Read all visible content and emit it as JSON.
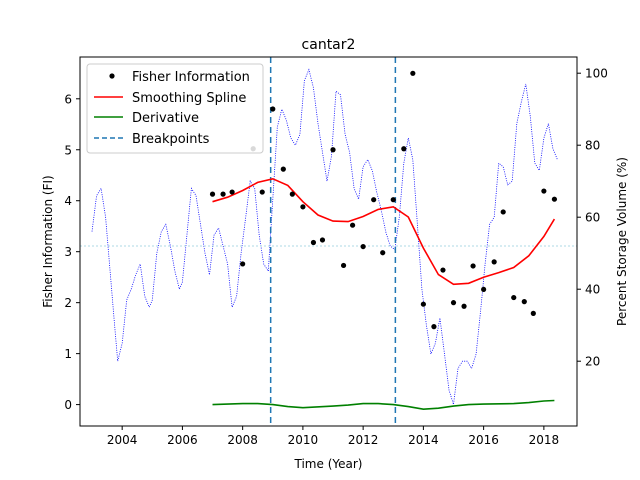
{
  "chart_data": {
    "type": "line",
    "title": "cantar2",
    "xlabel": "Time (Year)",
    "ylabel": "Fisher Information (FI)",
    "y2label": "Percent Storage Volume (%)",
    "xlim": [
      2002.6,
      2019.1
    ],
    "ylim": [
      -0.42,
      6.82
    ],
    "y2lim": [
      2.0,
      104.5
    ],
    "xticks": [
      2004,
      2006,
      2008,
      2010,
      2012,
      2014,
      2016,
      2018
    ],
    "yticks": [
      0,
      1,
      2,
      3,
      4,
      5,
      6
    ],
    "y2ticks": [
      20,
      40,
      60,
      80,
      100
    ],
    "legend": {
      "placement": "upper-left",
      "entries": [
        "Fisher Information",
        "Smoothing Spline",
        "Derivative",
        "Breakpoints"
      ]
    },
    "colors": {
      "fisher": "#000000",
      "spline": "#ff0000",
      "derivative": "#008000",
      "breakpoints": "#1f77b4",
      "storage": "#0000ff",
      "mean_storage": "#add8e6"
    },
    "fisher_points": {
      "x": [
        2007.0,
        2007.35,
        2007.65,
        2008.0,
        2008.35,
        2008.65,
        2009.0,
        2009.35,
        2009.65,
        2010.0,
        2010.35,
        2010.65,
        2011.0,
        2011.35,
        2011.65,
        2012.0,
        2012.35,
        2012.65,
        2013.0,
        2013.35,
        2013.65,
        2014.0,
        2014.35,
        2014.65,
        2015.0,
        2015.35,
        2015.65,
        2016.0,
        2016.35,
        2016.65,
        2017.0,
        2017.35,
        2017.65,
        2018.0,
        2018.35
      ],
      "y": [
        4.13,
        4.13,
        4.17,
        2.76,
        5.02,
        4.17,
        5.8,
        4.62,
        4.13,
        3.88,
        3.18,
        3.23,
        5.0,
        2.73,
        3.52,
        3.1,
        4.02,
        2.98,
        4.02,
        5.02,
        6.5,
        1.97,
        1.53,
        2.64,
        2.0,
        1.93,
        2.72,
        2.26,
        2.8,
        3.78,
        2.1,
        2.02,
        1.79,
        4.19,
        4.03
      ]
    },
    "spline": {
      "x": [
        2007.0,
        2007.5,
        2008.0,
        2008.5,
        2009.0,
        2009.5,
        2010.0,
        2010.5,
        2011.0,
        2011.5,
        2012.0,
        2012.5,
        2013.0,
        2013.5,
        2014.0,
        2014.5,
        2015.0,
        2015.5,
        2016.0,
        2016.5,
        2017.0,
        2017.5,
        2018.0,
        2018.35
      ],
      "y": [
        3.98,
        4.07,
        4.2,
        4.36,
        4.43,
        4.3,
        3.98,
        3.72,
        3.6,
        3.59,
        3.69,
        3.83,
        3.88,
        3.68,
        3.07,
        2.55,
        2.36,
        2.38,
        2.5,
        2.59,
        2.69,
        2.92,
        3.3,
        3.64
      ]
    },
    "derivative": {
      "x": [
        2007.0,
        2008.0,
        2008.5,
        2009.0,
        2009.5,
        2010.0,
        2011.0,
        2011.5,
        2012.0,
        2012.5,
        2013.0,
        2013.5,
        2014.0,
        2014.5,
        2015.0,
        2015.5,
        2016.0,
        2017.0,
        2017.5,
        2018.0,
        2018.35
      ],
      "y": [
        0.0,
        0.02,
        0.02,
        0.0,
        -0.04,
        -0.06,
        -0.03,
        -0.01,
        0.02,
        0.02,
        0.0,
        -0.04,
        -0.09,
        -0.07,
        -0.03,
        0.0,
        0.01,
        0.02,
        0.04,
        0.07,
        0.08
      ]
    },
    "breakpoints": [
      2008.93,
      2013.07
    ],
    "mean_storage": 52.0,
    "storage": {
      "x": [
        2003.0,
        2003.15,
        2003.3,
        2003.45,
        2003.6,
        2003.75,
        2003.85,
        2004.0,
        2004.15,
        2004.3,
        2004.45,
        2004.6,
        2004.75,
        2004.9,
        2005.0,
        2005.15,
        2005.3,
        2005.45,
        2005.6,
        2005.75,
        2005.9,
        2006.0,
        2006.15,
        2006.3,
        2006.45,
        2006.6,
        2006.75,
        2006.9,
        2007.05,
        2007.2,
        2007.35,
        2007.5,
        2007.65,
        2007.8,
        2007.95,
        2008.1,
        2008.25,
        2008.4,
        2008.55,
        2008.7,
        2008.85,
        2009.0,
        2009.15,
        2009.3,
        2009.45,
        2009.6,
        2009.75,
        2009.9,
        2010.05,
        2010.2,
        2010.35,
        2010.5,
        2010.65,
        2010.8,
        2010.95,
        2011.1,
        2011.25,
        2011.4,
        2011.55,
        2011.7,
        2011.85,
        2012.0,
        2012.15,
        2012.3,
        2012.45,
        2012.6,
        2012.75,
        2012.9,
        2013.05,
        2013.2,
        2013.35,
        2013.5,
        2013.65,
        2013.8,
        2013.95,
        2014.1,
        2014.25,
        2014.4,
        2014.55,
        2014.7,
        2014.85,
        2015.0,
        2015.15,
        2015.3,
        2015.45,
        2015.6,
        2015.75,
        2015.9,
        2016.05,
        2016.2,
        2016.35,
        2016.5,
        2016.65,
        2016.8,
        2016.95,
        2017.1,
        2017.25,
        2017.4,
        2017.55,
        2017.7,
        2017.85,
        2018.0,
        2018.15,
        2018.3,
        2018.45
      ],
      "y": [
        56,
        66,
        68,
        60,
        45,
        30,
        20,
        25,
        37,
        40,
        44,
        47,
        38,
        35,
        37,
        50,
        56,
        58,
        52,
        45,
        40,
        42,
        55,
        68,
        66,
        58,
        50,
        44,
        55,
        57,
        52,
        47,
        35,
        38,
        50,
        60,
        70,
        68,
        55,
        47,
        45,
        65,
        85,
        90,
        87,
        82,
        80,
        83,
        98,
        101,
        96,
        86,
        78,
        70,
        77,
        95,
        94,
        83,
        78,
        68,
        65,
        74,
        76,
        73,
        67,
        62,
        56,
        52,
        51,
        60,
        75,
        82,
        76,
        58,
        40,
        30,
        22,
        25,
        32,
        22,
        12,
        8,
        18,
        20,
        20,
        18,
        22,
        34,
        47,
        58,
        60,
        75,
        74,
        69,
        70,
        86,
        92,
        97,
        88,
        75,
        73,
        82,
        86,
        79,
        76
      ]
    }
  }
}
